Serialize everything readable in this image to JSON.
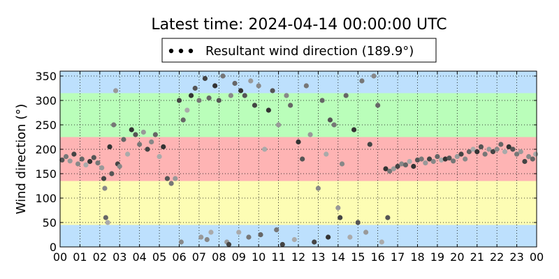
{
  "chart_data": {
    "type": "scatter",
    "title": "Latest time: 2024-04-14 00:00:00 UTC",
    "ylabel": "Wind direction (°)",
    "xlabel": "",
    "xlim": [
      0,
      24
    ],
    "ylim": [
      0,
      360
    ],
    "x_tick_labels": [
      "00",
      "01",
      "02",
      "03",
      "04",
      "05",
      "06",
      "07",
      "08",
      "09",
      "10",
      "11",
      "12",
      "13",
      "14",
      "15",
      "16",
      "17",
      "18",
      "19",
      "20",
      "21",
      "22",
      "23",
      "00"
    ],
    "y_ticks": [
      0,
      50,
      100,
      150,
      200,
      250,
      300,
      350
    ],
    "grid": true,
    "legend": {
      "placement": "top",
      "entries": [
        "Resultant wind direction (189.9°)"
      ]
    },
    "bands": [
      {
        "from": 0,
        "to": 45,
        "color": "#bde0fd"
      },
      {
        "from": 45,
        "to": 135,
        "color": "#fdfdb4"
      },
      {
        "from": 135,
        "to": 225,
        "color": "#feb4b4"
      },
      {
        "from": 225,
        "to": 315,
        "color": "#bafeba"
      },
      {
        "from": 315,
        "to": 360,
        "color": "#bde0fd"
      }
    ],
    "series": [
      {
        "name": "Resultant wind direction (189.9°)",
        "points": [
          [
            0.1,
            178
          ],
          [
            0.3,
            185
          ],
          [
            0.5,
            176
          ],
          [
            0.7,
            190
          ],
          [
            0.9,
            170
          ],
          [
            1.1,
            180
          ],
          [
            1.3,
            168
          ],
          [
            1.5,
            175
          ],
          [
            1.7,
            183
          ],
          [
            1.9,
            172
          ],
          [
            2.1,
            162
          ],
          [
            2.2,
            140
          ],
          [
            2.25,
            120
          ],
          [
            2.3,
            60
          ],
          [
            2.4,
            50
          ],
          [
            2.5,
            205
          ],
          [
            2.6,
            150
          ],
          [
            2.7,
            250
          ],
          [
            2.8,
            320
          ],
          [
            2.9,
            170
          ],
          [
            3.0,
            165
          ],
          [
            3.2,
            220
          ],
          [
            3.4,
            190
          ],
          [
            3.6,
            240
          ],
          [
            3.8,
            230
          ],
          [
            4.0,
            210
          ],
          [
            4.2,
            235
          ],
          [
            4.4,
            200
          ],
          [
            4.6,
            215
          ],
          [
            4.8,
            230
          ],
          [
            5.0,
            185
          ],
          [
            5.2,
            205
          ],
          [
            5.4,
            140
          ],
          [
            5.6,
            130
          ],
          [
            5.8,
            140
          ],
          [
            6.0,
            300
          ],
          [
            6.1,
            10
          ],
          [
            6.2,
            260
          ],
          [
            6.4,
            280
          ],
          [
            6.6,
            310
          ],
          [
            6.8,
            325
          ],
          [
            7.0,
            300
          ],
          [
            7.1,
            20
          ],
          [
            7.3,
            345
          ],
          [
            7.4,
            15
          ],
          [
            7.5,
            305
          ],
          [
            7.6,
            30
          ],
          [
            7.8,
            330
          ],
          [
            8.0,
            300
          ],
          [
            8.2,
            350
          ],
          [
            8.4,
            10
          ],
          [
            8.5,
            5
          ],
          [
            8.6,
            310
          ],
          [
            8.8,
            335
          ],
          [
            9.0,
            30
          ],
          [
            9.1,
            320
          ],
          [
            9.3,
            310
          ],
          [
            9.5,
            20
          ],
          [
            9.6,
            340
          ],
          [
            9.8,
            290
          ],
          [
            10.0,
            330
          ],
          [
            10.1,
            25
          ],
          [
            10.3,
            200
          ],
          [
            10.5,
            280
          ],
          [
            10.7,
            320
          ],
          [
            10.9,
            35
          ],
          [
            11.0,
            250
          ],
          [
            11.2,
            5
          ],
          [
            11.4,
            310
          ],
          [
            11.6,
            290
          ],
          [
            11.8,
            15
          ],
          [
            12.0,
            215
          ],
          [
            12.2,
            180
          ],
          [
            12.4,
            330
          ],
          [
            12.6,
            230
          ],
          [
            12.8,
            10
          ],
          [
            13.0,
            120
          ],
          [
            13.2,
            300
          ],
          [
            13.4,
            190
          ],
          [
            13.5,
            20
          ],
          [
            13.6,
            260
          ],
          [
            13.8,
            250
          ],
          [
            14.0,
            80
          ],
          [
            14.1,
            60
          ],
          [
            14.2,
            170
          ],
          [
            14.4,
            310
          ],
          [
            14.6,
            20
          ],
          [
            14.8,
            240
          ],
          [
            15.0,
            50
          ],
          [
            15.2,
            340
          ],
          [
            15.4,
            30
          ],
          [
            15.6,
            210
          ],
          [
            15.8,
            350
          ],
          [
            16.0,
            290
          ],
          [
            16.2,
            10
          ],
          [
            16.4,
            160
          ],
          [
            16.5,
            60
          ],
          [
            16.6,
            155
          ],
          [
            16.8,
            160
          ],
          [
            17.0,
            165
          ],
          [
            17.2,
            170
          ],
          [
            17.4,
            168
          ],
          [
            17.6,
            175
          ],
          [
            17.8,
            165
          ],
          [
            18.0,
            178
          ],
          [
            18.2,
            180
          ],
          [
            18.4,
            172
          ],
          [
            18.6,
            180
          ],
          [
            18.8,
            175
          ],
          [
            19.0,
            185
          ],
          [
            19.2,
            178
          ],
          [
            19.4,
            180
          ],
          [
            19.6,
            182
          ],
          [
            19.8,
            176
          ],
          [
            20.0,
            185
          ],
          [
            20.2,
            190
          ],
          [
            20.4,
            180
          ],
          [
            20.6,
            195
          ],
          [
            20.8,
            200
          ],
          [
            21.0,
            195
          ],
          [
            21.2,
            205
          ],
          [
            21.4,
            190
          ],
          [
            21.6,
            200
          ],
          [
            21.8,
            195
          ],
          [
            22.0,
            200
          ],
          [
            22.2,
            210
          ],
          [
            22.4,
            195
          ],
          [
            22.6,
            205
          ],
          [
            22.8,
            200
          ],
          [
            23.0,
            190
          ],
          [
            23.2,
            195
          ],
          [
            23.4,
            175
          ],
          [
            23.6,
            185
          ],
          [
            23.8,
            180
          ],
          [
            23.95,
            190
          ]
        ]
      }
    ]
  }
}
